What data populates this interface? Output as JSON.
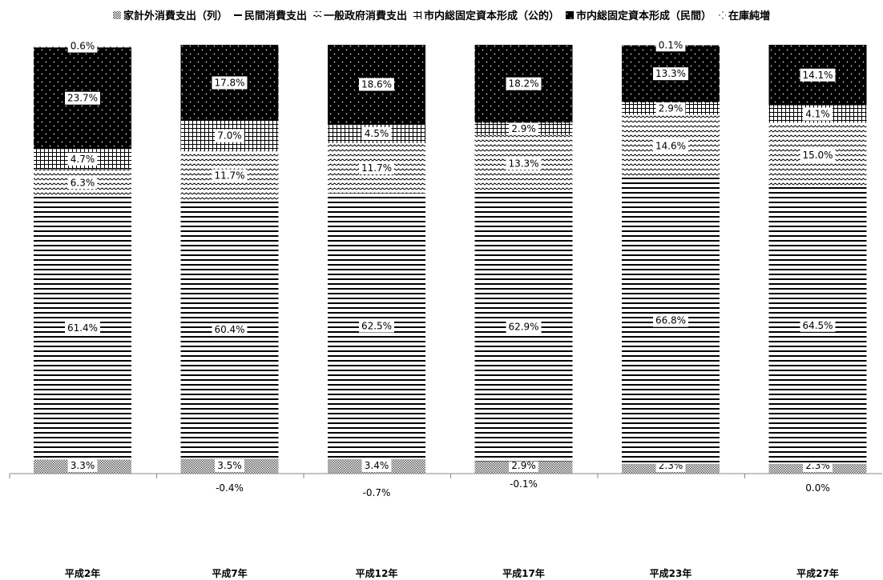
{
  "chart_data": {
    "type": "bar",
    "stacked": true,
    "percent": true,
    "legend_position": "top",
    "categories": [
      "平成2年",
      "平成7年",
      "平成12年",
      "平成17年",
      "平成23年",
      "平成27年"
    ],
    "series": [
      {
        "name": "家計外消費支出（列）",
        "pattern": "crosshatch-dense",
        "values": [
          3.3,
          3.5,
          3.4,
          2.9,
          2.3,
          2.3
        ],
        "labels": [
          "3.3%",
          "3.5%",
          "3.4%",
          "2.9%",
          "2.3%",
          "2.3%"
        ]
      },
      {
        "name": "民間消費支出",
        "pattern": "horizontal-lines",
        "values": [
          61.4,
          60.4,
          62.5,
          62.9,
          66.8,
          64.5
        ],
        "labels": [
          "61.4%",
          "60.4%",
          "62.5%",
          "62.9%",
          "66.8%",
          "64.5%"
        ]
      },
      {
        "name": "一般政府消費支出",
        "pattern": "wave",
        "values": [
          6.3,
          11.7,
          11.7,
          13.3,
          14.6,
          15.0
        ],
        "labels": [
          "6.3%",
          "11.7%",
          "11.7%",
          "13.3%",
          "14.6%",
          "15.0%"
        ]
      },
      {
        "name": "市内総固定資本形成（公的）",
        "pattern": "grid",
        "values": [
          4.7,
          7.0,
          4.5,
          2.9,
          2.9,
          4.1
        ],
        "labels": [
          "4.7%",
          "7.0%",
          "4.5%",
          "2.9%",
          "2.9%",
          "4.1%"
        ]
      },
      {
        "name": "市内総固定資本形成（民間）",
        "pattern": "dots-on-black",
        "values": [
          23.7,
          17.8,
          18.6,
          18.2,
          13.3,
          14.1
        ],
        "labels": [
          "23.7%",
          "17.8%",
          "18.6%",
          "18.2%",
          "13.3%",
          "14.1%"
        ]
      },
      {
        "name": "在庫純増",
        "pattern": "sparse-dots",
        "values": [
          0.6,
          -0.4,
          -0.7,
          -0.1,
          0.1,
          0.0
        ],
        "labels": [
          "0.6%",
          "-0.4%",
          "-0.7%",
          "-0.1%",
          "0.1%",
          "0.0%"
        ]
      }
    ]
  }
}
